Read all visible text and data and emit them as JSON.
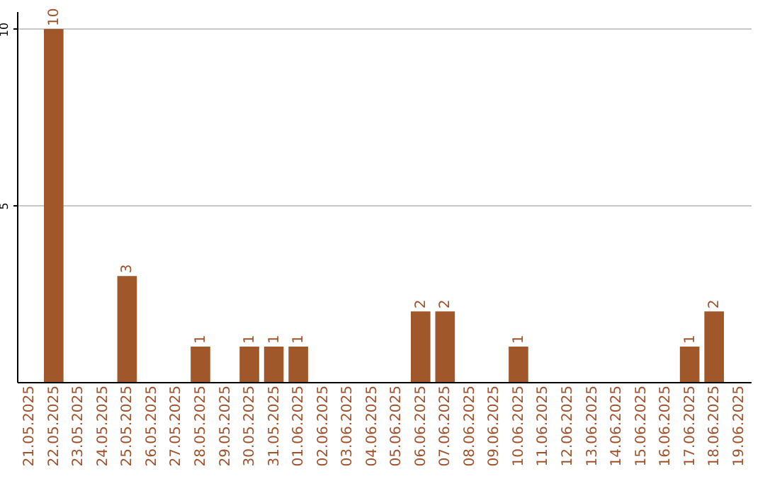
{
  "chart_data": {
    "type": "bar",
    "categories": [
      "21.05.2025",
      "22.05.2025",
      "23.05.2025",
      "24.05.2025",
      "25.05.2025",
      "26.05.2025",
      "27.05.2025",
      "28.05.2025",
      "29.05.2025",
      "30.05.2025",
      "31.05.2025",
      "01.06.2025",
      "02.06.2025",
      "03.06.2025",
      "04.06.2025",
      "05.06.2025",
      "06.06.2025",
      "07.06.2025",
      "08.06.2025",
      "09.06.2025",
      "10.06.2025",
      "11.06.2025",
      "12.06.2025",
      "13.06.2025",
      "14.06.2025",
      "15.06.2025",
      "16.06.2025",
      "17.06.2025",
      "18.06.2025",
      "19.06.2025"
    ],
    "values": [
      null,
      10,
      null,
      null,
      3,
      null,
      null,
      1,
      null,
      1,
      1,
      1,
      null,
      null,
      null,
      null,
      2,
      2,
      null,
      null,
      1,
      null,
      null,
      null,
      null,
      null,
      null,
      1,
      2,
      null
    ],
    "color": "#a0582a",
    "ylim": [
      0,
      10.5
    ],
    "yticks": [
      5,
      10
    ],
    "grid": "y",
    "data_labels": true
  }
}
